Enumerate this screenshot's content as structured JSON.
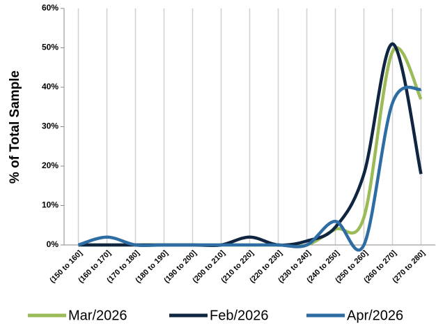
{
  "chart_data": {
    "type": "line",
    "y_label": "% of Total Sample",
    "categories": [
      "(150 to 160]",
      "(160 to 170]",
      "(170 to 180]",
      "(180 to 190]",
      "(190 to 200]",
      "(200 to 210]",
      "(210 to 220]",
      "(220 to 230]",
      "(230 to 240]",
      "(240 to 250]",
      "(250 to 260]",
      "(260 to 270]",
      "(270 to 280]"
    ],
    "series": [
      {
        "name": "Mar/2026",
        "color": "#9bbb59",
        "values": [
          0,
          0,
          0,
          0,
          0,
          0,
          0,
          0,
          0,
          4,
          7,
          49,
          37
        ]
      },
      {
        "name": "Feb/2026",
        "color": "#0f2540",
        "values": [
          0,
          0,
          0,
          0,
          0,
          0,
          2,
          0,
          1,
          4.5,
          18,
          51,
          18
        ]
      },
      {
        "name": "Apr/2026",
        "color": "#2e6da4",
        "values": [
          0,
          2,
          0,
          0,
          0,
          0,
          0,
          0,
          0,
          6,
          0,
          36,
          39.5
        ]
      }
    ],
    "ylim": [
      0,
      60
    ],
    "yticks": [
      {
        "value": 0,
        "label": "0%"
      },
      {
        "value": 10,
        "label": "10%"
      },
      {
        "value": 20,
        "label": "20%"
      },
      {
        "value": 30,
        "label": "30%"
      },
      {
        "value": 40,
        "label": "40%"
      },
      {
        "value": 50,
        "label": "50%"
      },
      {
        "value": 60,
        "label": "60%"
      }
    ],
    "grid": true,
    "smooth": true,
    "legend": "bottom"
  }
}
